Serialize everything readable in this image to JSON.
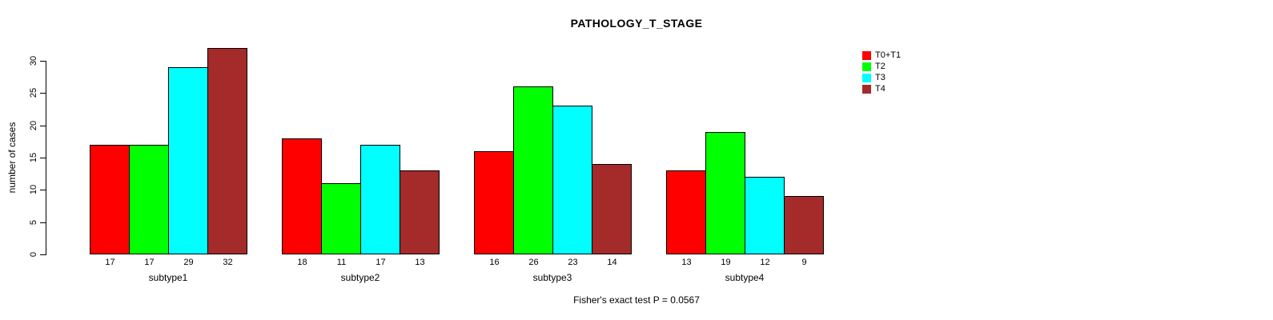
{
  "chart_data": {
    "type": "bar",
    "title": "PATHOLOGY_T_STAGE",
    "ylabel": "number of cases",
    "xlabel": "",
    "annotation": "Fisher's exact test P = 0.0567",
    "categories": [
      "subtype1",
      "subtype2",
      "subtype3",
      "subtype4"
    ],
    "series": [
      {
        "name": "T0+T1",
        "color": "#FF0000",
        "values": [
          17,
          18,
          16,
          13
        ]
      },
      {
        "name": "T2",
        "color": "#00FF00",
        "values": [
          17,
          11,
          26,
          19
        ]
      },
      {
        "name": "T3",
        "color": "#00FFFF",
        "values": [
          29,
          17,
          23,
          12
        ]
      },
      {
        "name": "T4",
        "color": "#A52A2A",
        "values": [
          32,
          13,
          14,
          9
        ]
      }
    ],
    "yticks": [
      0,
      5,
      10,
      15,
      20,
      25,
      30
    ],
    "ylim": [
      0,
      32
    ],
    "bar_value_labels": true,
    "grid": false,
    "legend_position": "top-right"
  }
}
